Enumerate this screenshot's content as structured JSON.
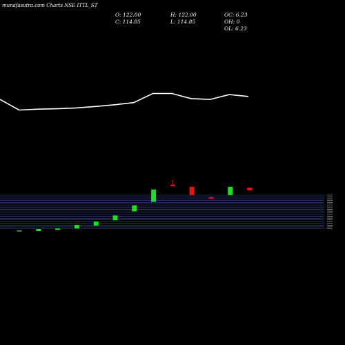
{
  "header": {
    "title": "munafasutra.com Charts NSE ITTL_ST",
    "open": "O: 122.00",
    "close": "C: 114.85",
    "high": "H: 122.00",
    "low": "L: 114.85",
    "oc": "OC: 6.23",
    "oh": "OH: 0",
    "ol": "OL: 6.23"
  },
  "colors": {
    "background": "#000000",
    "price_line": "#ffffff",
    "up": "#22dd22",
    "down": "#ee1111",
    "band_line": "#3a4fa0"
  },
  "chart_data": [
    {
      "type": "line",
      "series": [
        {
          "values": [
            118,
            113,
            113.4,
            113.6,
            114,
            114.7,
            115.5,
            116.5,
            120.8,
            120.8,
            118.4,
            118,
            120.3,
            119.4
          ]
        }
      ],
      "ylim": [
        90,
        165
      ]
    },
    {
      "type": "bar",
      "values": [
        {
          "dir": "up",
          "open": 0.5,
          "close": 2
        },
        {
          "dir": "up",
          "open": 1,
          "close": 4
        },
        {
          "dir": "up",
          "open": 3,
          "close": 5
        },
        {
          "dir": "up",
          "open": 5,
          "close": 10
        },
        {
          "dir": "up",
          "open": 9,
          "close": 15
        },
        {
          "dir": "up",
          "open": 17,
          "close": 24
        },
        {
          "dir": "up",
          "open": 30,
          "close": 39
        },
        {
          "dir": "up",
          "open": 44,
          "close": 62
        },
        {
          "dir": "down",
          "open": 67,
          "close": 69,
          "high": 76
        },
        {
          "dir": "down",
          "open": 66,
          "close": 54
        },
        {
          "dir": "down",
          "open": 51,
          "close": 49
        },
        {
          "dir": "up",
          "open": 54,
          "close": 66
        },
        {
          "dir": "down",
          "open": 65,
          "close": 61
        }
      ],
      "ylim": [
        0,
        85
      ]
    }
  ]
}
